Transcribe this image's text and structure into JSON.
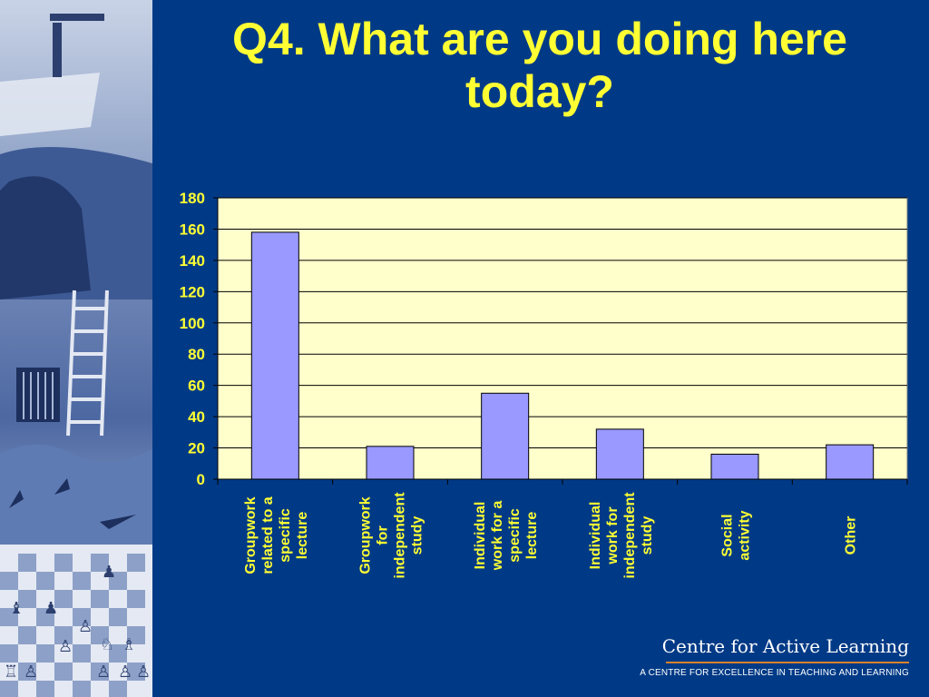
{
  "slide": {
    "title_line1": "Q4. What are you doing here",
    "title_line2": "today?"
  },
  "brand": {
    "name": "Centre for Active Learning",
    "tagline": "A CENTRE FOR EXCELLENCE IN TEACHING AND LEARNING",
    "rule_color": "#d9822b"
  },
  "colors": {
    "background": "#003a86",
    "title": "#ffff33",
    "plot_area": "#ffffcc",
    "bar": "#9999ff",
    "axis_text": "#ffff33"
  },
  "chart_data": {
    "type": "bar",
    "categories": [
      [
        "Groupwork",
        "related to a",
        "specific",
        "lecture"
      ],
      [
        "Groupwork",
        "for",
        "independent",
        "study"
      ],
      [
        "Individual",
        "work for a",
        "specific",
        "lecture"
      ],
      [
        "Individual",
        "work for",
        "independent",
        "study"
      ],
      [
        "Social",
        "activity"
      ],
      [
        "Other"
      ]
    ],
    "values": [
      158,
      21,
      55,
      32,
      16,
      22
    ],
    "ylim": [
      0,
      180
    ],
    "yticks": [
      0,
      20,
      40,
      60,
      80,
      100,
      120,
      140,
      160,
      180
    ],
    "grid": true,
    "legend": "none",
    "xlabel_rotation": "vertical"
  }
}
